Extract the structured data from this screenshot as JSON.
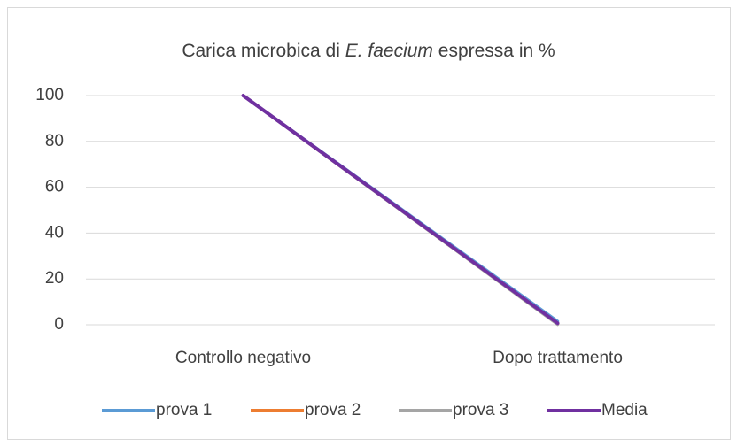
{
  "chart_data": {
    "type": "line",
    "title": [
      {
        "text": "Carica microbica di "
      },
      {
        "text": "E. faecium",
        "italic": true
      },
      {
        "text": " espressa in %"
      }
    ],
    "categories": [
      "Controllo negativo",
      "Dopo trattamento"
    ],
    "series": [
      {
        "name": "prova 1",
        "color": "#5b9bd5",
        "values": [
          100,
          1.5
        ]
      },
      {
        "name": "prova 2",
        "color": "#ed7d31",
        "values": [
          100,
          0.3
        ]
      },
      {
        "name": "prova 3",
        "color": "#a5a5a5",
        "values": [
          100,
          0.2
        ]
      },
      {
        "name": "Media",
        "color": "#7030a0",
        "values": [
          100,
          0.7
        ]
      }
    ],
    "ylim": [
      0,
      100
    ],
    "yticks": [
      0,
      20,
      40,
      60,
      80,
      100
    ],
    "grid": true,
    "legend": "bottom"
  }
}
